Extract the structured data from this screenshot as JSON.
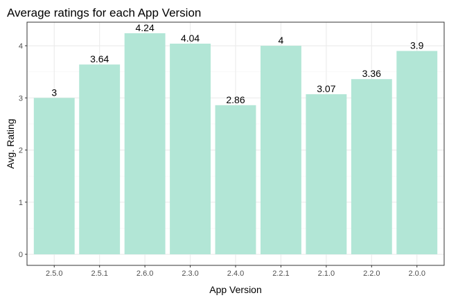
{
  "chart_data": {
    "type": "bar",
    "title": "Average ratings for each App Version",
    "xlabel": "App Version",
    "ylabel": "Avg. Rating",
    "categories": [
      "2.5.0",
      "2.5.1",
      "2.6.0",
      "2.3.0",
      "2.4.0",
      "2.2.1",
      "2.1.0",
      "2.2.0",
      "2.0.0"
    ],
    "values": [
      3,
      3.64,
      4.24,
      4.04,
      2.86,
      4,
      3.07,
      3.36,
      3.9
    ],
    "data_labels": [
      "3",
      "3.64",
      "4.24",
      "4.04",
      "2.86",
      "4",
      "3.07",
      "3.36",
      "3.9"
    ],
    "ylim": [
      0,
      4.24
    ],
    "y_ticks": [
      0,
      1,
      2,
      3,
      4
    ],
    "y_tick_labels": [
      "0",
      "1",
      "2",
      "3",
      "4"
    ],
    "grid": true,
    "legend": "none",
    "colors": {
      "bar": "#b2e6d6",
      "grid_major": "#ebebeb",
      "grid_minor": "#f5f5f5",
      "panel_border": "#333333",
      "tick_text": "#4d4d4d"
    }
  }
}
